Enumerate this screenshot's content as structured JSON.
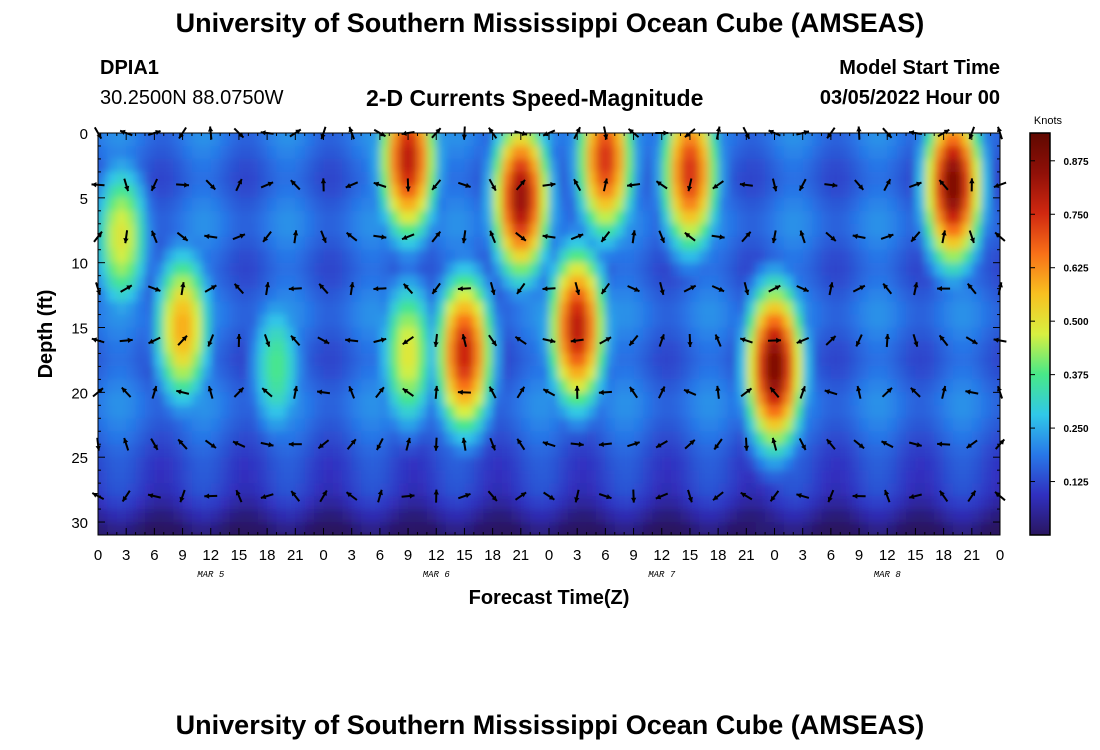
{
  "header": {
    "main_title": "University of Southern Mississippi Ocean Cube (AMSEAS)",
    "station_id": "DPIA1",
    "coordinates": "30.2500N  88.0750W",
    "plot_title": "2-D Currents Speed-Magnitude",
    "model_start_label": "Model Start Time",
    "model_start_value": "03/05/2022 Hour 00",
    "footer_title": "University of Southern Mississippi Ocean Cube (AMSEAS)"
  },
  "chart_data": {
    "type": "heatmap",
    "title": "2-D Currents Speed-Magnitude",
    "xlabel": "Forecast Time(Z)",
    "ylabel": "Depth (ft)",
    "xlim": [
      0,
      96
    ],
    "ylim": [
      0,
      31
    ],
    "y_inverted": true,
    "x_ticks": [
      0,
      3,
      6,
      9,
      12,
      15,
      18,
      21,
      24,
      27,
      30,
      33,
      36,
      39,
      42,
      45,
      48,
      51,
      54,
      57,
      60,
      63,
      66,
      69,
      72,
      75,
      78,
      81,
      84,
      87,
      90,
      93,
      96
    ],
    "x_tick_labels": [
      "0",
      "3",
      "6",
      "9",
      "12",
      "15",
      "18",
      "21",
      "0",
      "3",
      "6",
      "9",
      "12",
      "15",
      "18",
      "21",
      "0",
      "3",
      "6",
      "9",
      "12",
      "15",
      "18",
      "21",
      "0",
      "3",
      "6",
      "9",
      "12",
      "15",
      "18",
      "21",
      "0"
    ],
    "y_ticks": [
      0,
      5,
      10,
      15,
      20,
      25,
      30
    ],
    "y_tick_labels": [
      "0",
      "5",
      "10",
      "15",
      "20",
      "25",
      "30"
    ],
    "date_labels": [
      {
        "text": "MAR 5",
        "x": 12
      },
      {
        "text": "MAR 6",
        "x": 36
      },
      {
        "text": "MAR 7",
        "x": 60
      },
      {
        "text": "MAR 8",
        "x": 84
      }
    ],
    "colorbar": {
      "unit": "Knots",
      "range": [
        0,
        0.94
      ],
      "ticks": [
        0.125,
        0.25,
        0.375,
        0.5,
        0.625,
        0.75,
        0.875
      ],
      "tick_labels": [
        "0.125",
        "0.250",
        "0.375",
        "0.500",
        "0.625",
        "0.750",
        "0.875"
      ],
      "colormap": [
        "#2a1660",
        "#3030c0",
        "#2878e8",
        "#30c8e8",
        "#48e888",
        "#d8f040",
        "#f8c020",
        "#f87018",
        "#d02810",
        "#901008",
        "#600800"
      ]
    },
    "speed_features_knots": [
      {
        "t": 9,
        "depth": 15,
        "speed": 0.6
      },
      {
        "t": 2.5,
        "depth": 8,
        "speed": 0.5
      },
      {
        "t": 19,
        "depth": 18,
        "speed": 0.38
      },
      {
        "t": 33,
        "depth": 2,
        "speed": 0.8
      },
      {
        "t": 33,
        "depth": 17,
        "speed": 0.5
      },
      {
        "t": 39,
        "depth": 17,
        "speed": 0.78
      },
      {
        "t": 45,
        "depth": 5,
        "speed": 0.85
      },
      {
        "t": 51,
        "depth": 15,
        "speed": 0.8
      },
      {
        "t": 54,
        "depth": 2,
        "speed": 0.75
      },
      {
        "t": 63,
        "depth": 3,
        "speed": 0.75
      },
      {
        "t": 72,
        "depth": 18,
        "speed": 0.9
      },
      {
        "t": 91,
        "depth": 4,
        "speed": 0.9
      }
    ],
    "vectors": {
      "times": [
        0,
        3,
        6,
        9,
        12,
        15,
        18,
        21,
        24,
        27,
        30,
        33,
        36,
        39,
        42,
        45,
        48,
        51,
        54,
        57,
        60,
        63,
        66,
        69,
        72,
        75,
        78,
        81,
        84,
        87,
        90,
        93,
        96
      ],
      "depths": [
        0,
        4,
        8,
        12,
        16,
        20,
        24,
        28
      ],
      "direction_convention": "degrees clockwise from north, direction current flows toward"
    }
  }
}
